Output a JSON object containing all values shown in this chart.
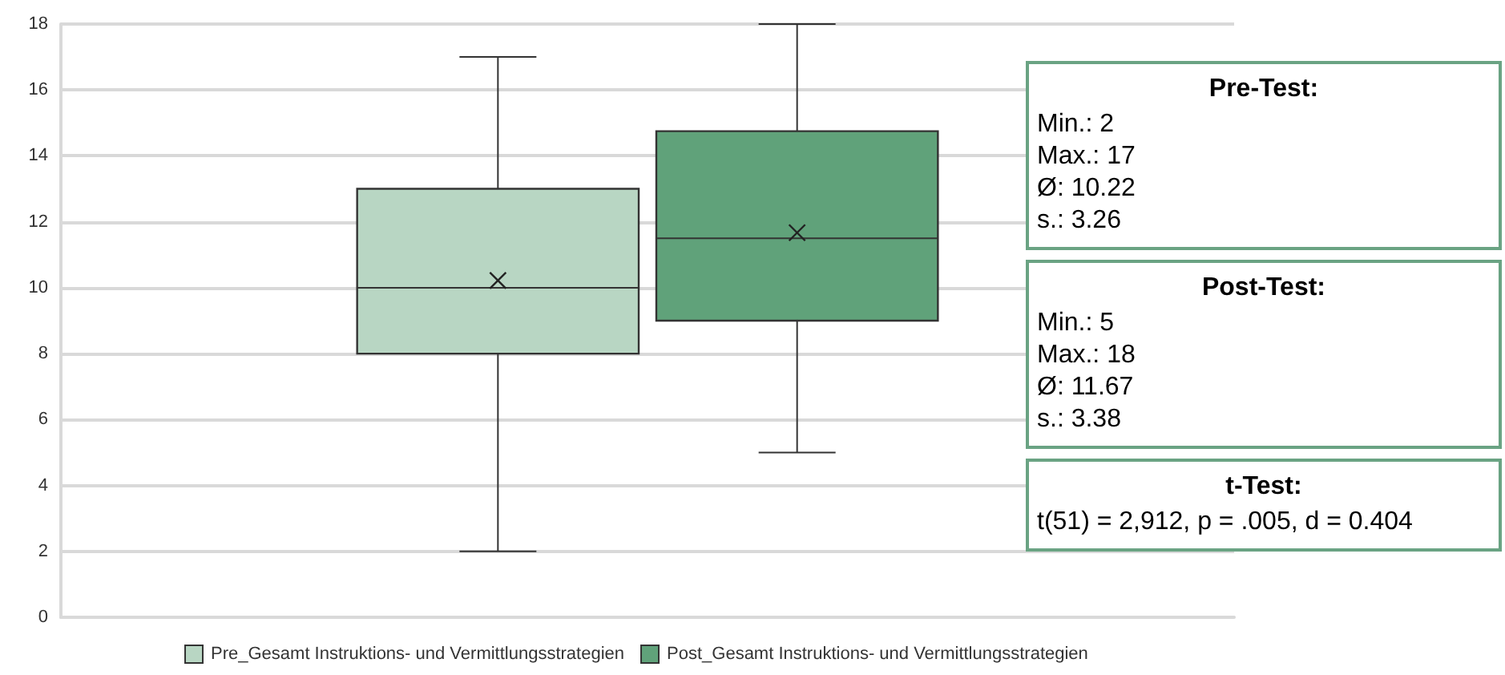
{
  "chart_data": {
    "type": "box",
    "categories": [
      null
    ],
    "series": [
      {
        "name": "Pre_Gesamt Instruktions- und Vermittlungsstrategien",
        "color": "#b8d6c3",
        "boxes": [
          {
            "low": 2,
            "q1": 8,
            "median": 10,
            "q3": 13,
            "high": 17,
            "mean": 10.22
          }
        ]
      },
      {
        "name": "Post_Gesamt Instruktions- und Vermittlungsstrategien",
        "color": "#60a27a",
        "boxes": [
          {
            "low": 5,
            "q1": 9,
            "median": 11.5,
            "q3": 14.75,
            "high": 18,
            "mean": 11.67
          }
        ]
      }
    ],
    "ylim": [
      0,
      18
    ],
    "yticks": [
      0,
      2,
      4,
      6,
      8,
      10,
      12,
      14,
      16,
      18
    ],
    "grid": "y",
    "legend": "bottom",
    "marker": "cross",
    "annotations": [
      "Pre-Test:\nMin.: 2\nMax.: 17\nØ: 10.22\ns.: 3.26",
      "Post-Test:\nMin.: 5\nMax.: 18\nØ: 11.67\ns.: 3.38",
      "t-Test:\nt(51) = 2,912, p = .005, d = 0.404"
    ]
  }
}
